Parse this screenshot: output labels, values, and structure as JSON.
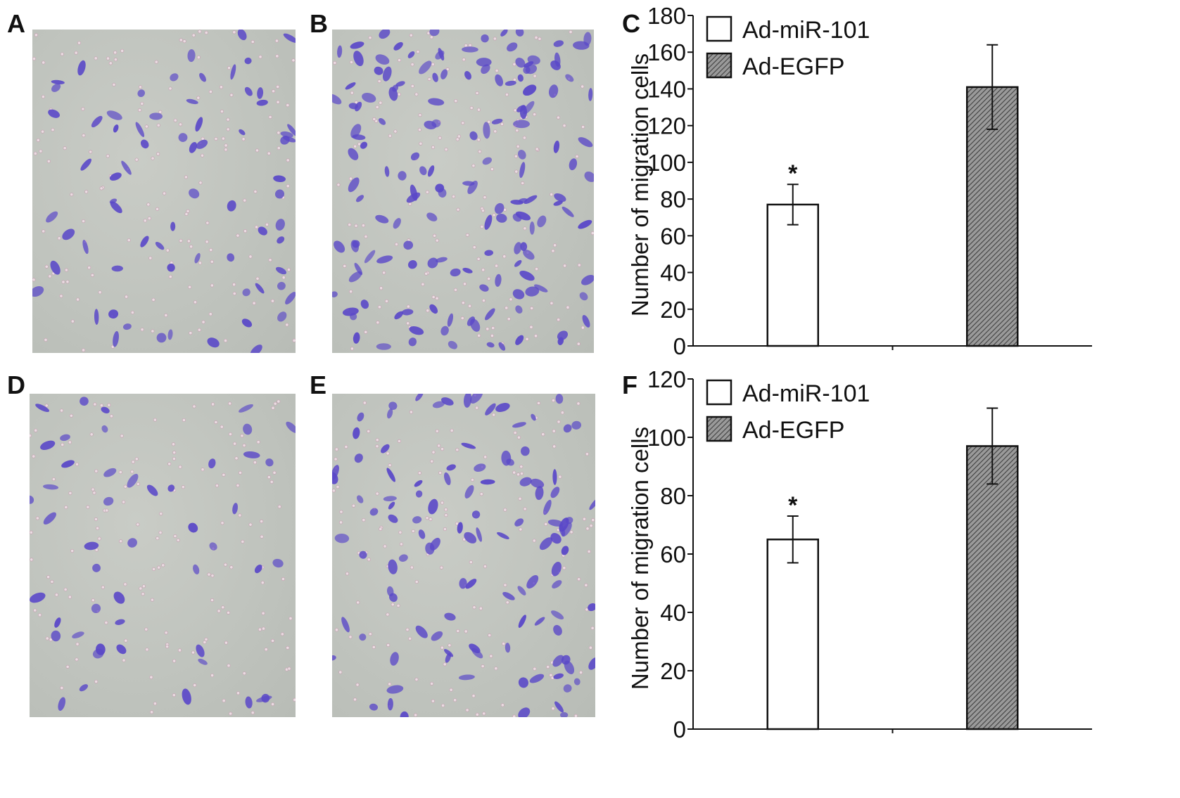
{
  "panel_labels": {
    "a": "A",
    "b": "B",
    "c": "C",
    "d": "D",
    "e": "E",
    "f": "F"
  },
  "micrographs": {
    "a": {
      "description_level": "sparse-moderate",
      "stain_color": "#5a48c8"
    },
    "b": {
      "description_level": "dense",
      "stain_color": "#5a48c8"
    },
    "d": {
      "description_level": "sparse",
      "stain_color": "#5a48c8"
    },
    "e": {
      "description_level": "moderate-dense",
      "stain_color": "#5a48c8"
    }
  },
  "colors": {
    "bar_open": "#ffffff",
    "bar_hatch": "#777777",
    "axis": "#111111"
  },
  "chart_data": [
    {
      "type": "bar",
      "panel": "C",
      "ylabel": "Number of migration cells",
      "ylim": [
        0,
        180
      ],
      "yticks": [
        0,
        20,
        40,
        60,
        80,
        100,
        120,
        140,
        160,
        180
      ],
      "series": [
        {
          "name": "Ad-miR-101",
          "value": 77,
          "error": 11,
          "annotation": "*",
          "fill": "open"
        },
        {
          "name": "Ad-EGFP",
          "value": 141,
          "error": 23,
          "annotation": "",
          "fill": "hatched"
        }
      ],
      "legend": "top-left"
    },
    {
      "type": "bar",
      "panel": "F",
      "ylabel": "Number of migration cells",
      "ylim": [
        0,
        120
      ],
      "yticks": [
        0,
        20,
        40,
        60,
        80,
        100,
        120
      ],
      "series": [
        {
          "name": "Ad-miR-101",
          "value": 65,
          "error": 8,
          "annotation": "*",
          "fill": "open"
        },
        {
          "name": "Ad-EGFP",
          "value": 97,
          "error": 13,
          "annotation": "",
          "fill": "hatched"
        }
      ],
      "legend": "top-left"
    }
  ]
}
